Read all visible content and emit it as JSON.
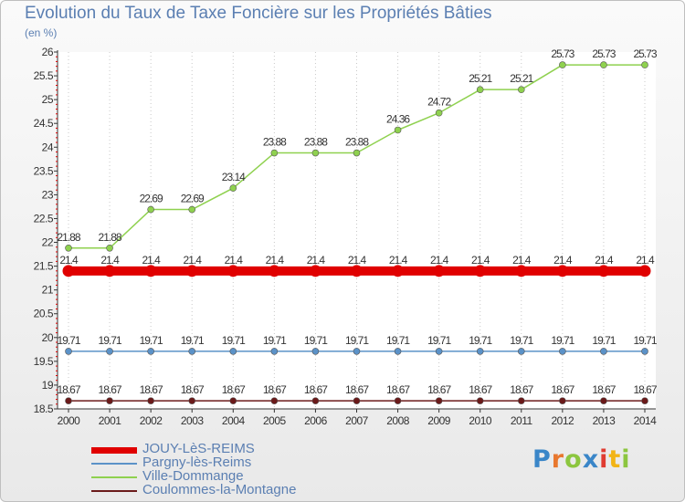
{
  "title": "Evolution du Taux de Taxe Foncière sur les Propriétés Bâties",
  "unit_label": "(en %)",
  "logo": "Proxiti",
  "colors": {
    "title": "#5b7fb2",
    "grid": "#c8c8c8",
    "axis": "#333333",
    "tick_red": "#e00000"
  },
  "chart_data": {
    "type": "line",
    "title": "Evolution du Taux de Taxe Foncière sur les Propriétés Bâties",
    "ylabel": "(en %)",
    "xlabel": "",
    "categories": [
      "2000",
      "2001",
      "2002",
      "2003",
      "2004",
      "2005",
      "2006",
      "2007",
      "2008",
      "2009",
      "2010",
      "2011",
      "2012",
      "2013",
      "2014"
    ],
    "ylim": [
      18.5,
      26
    ],
    "yticks": [
      "18.5",
      "19",
      "19.5",
      "20",
      "20.5",
      "21",
      "21.5",
      "22",
      "22.5",
      "23",
      "23.5",
      "24",
      "24.5",
      "25",
      "25.5",
      "26"
    ],
    "grid": "vertical",
    "legend_position": "bottom-left",
    "series": [
      {
        "name": "JOUY-LèS-REIMS",
        "color": "#e00000",
        "values": [
          21.4,
          21.4,
          21.4,
          21.4,
          21.4,
          21.4,
          21.4,
          21.4,
          21.4,
          21.4,
          21.4,
          21.4,
          21.4,
          21.4,
          21.4
        ],
        "labels": [
          "21.4",
          "21.4",
          "21.4",
          "21.4",
          "21.4",
          "21.4",
          "21.4",
          "21.4",
          "21.4",
          "21.4",
          "21.4",
          "21.4",
          "21.4",
          "21.4",
          "21.4"
        ]
      },
      {
        "name": "Pargny-lès-Reims",
        "color": "#5b92c8",
        "values": [
          19.71,
          19.71,
          19.71,
          19.71,
          19.71,
          19.71,
          19.71,
          19.71,
          19.71,
          19.71,
          19.71,
          19.71,
          19.71,
          19.71,
          19.71
        ],
        "labels": [
          "19.71",
          "19.71",
          "19.71",
          "19.71",
          "19.71",
          "19.71",
          "19.71",
          "19.71",
          "19.71",
          "19.71",
          "19.71",
          "19.71",
          "19.71",
          "19.71",
          "19.71"
        ]
      },
      {
        "name": "Ville-Dommange",
        "color": "#8fd14f",
        "values": [
          21.88,
          21.88,
          22.69,
          22.69,
          23.14,
          23.88,
          23.88,
          23.88,
          24.36,
          24.72,
          25.21,
          25.21,
          25.73,
          25.73,
          25.73
        ],
        "labels": [
          "21.88",
          "21.88",
          "22.69",
          "22.69",
          "23.14",
          "23.88",
          "23.88",
          "23.88",
          "24.36",
          "24.72",
          "25.21",
          "25.21",
          "25.73",
          "25.73",
          "25.73"
        ]
      },
      {
        "name": "Coulommes-la-Montagne",
        "color": "#6b1a1a",
        "values": [
          18.67,
          18.67,
          18.67,
          18.67,
          18.67,
          18.67,
          18.67,
          18.67,
          18.67,
          18.67,
          18.67,
          18.67,
          18.67,
          18.67,
          18.67
        ],
        "labels": [
          "18.67",
          "18.67",
          "18.67",
          "18.67",
          "18.67",
          "18.67",
          "18.67",
          "18.67",
          "18.67",
          "18.67",
          "18.67",
          "18.67",
          "18.67",
          "18.67",
          "18.67"
        ]
      }
    ]
  }
}
